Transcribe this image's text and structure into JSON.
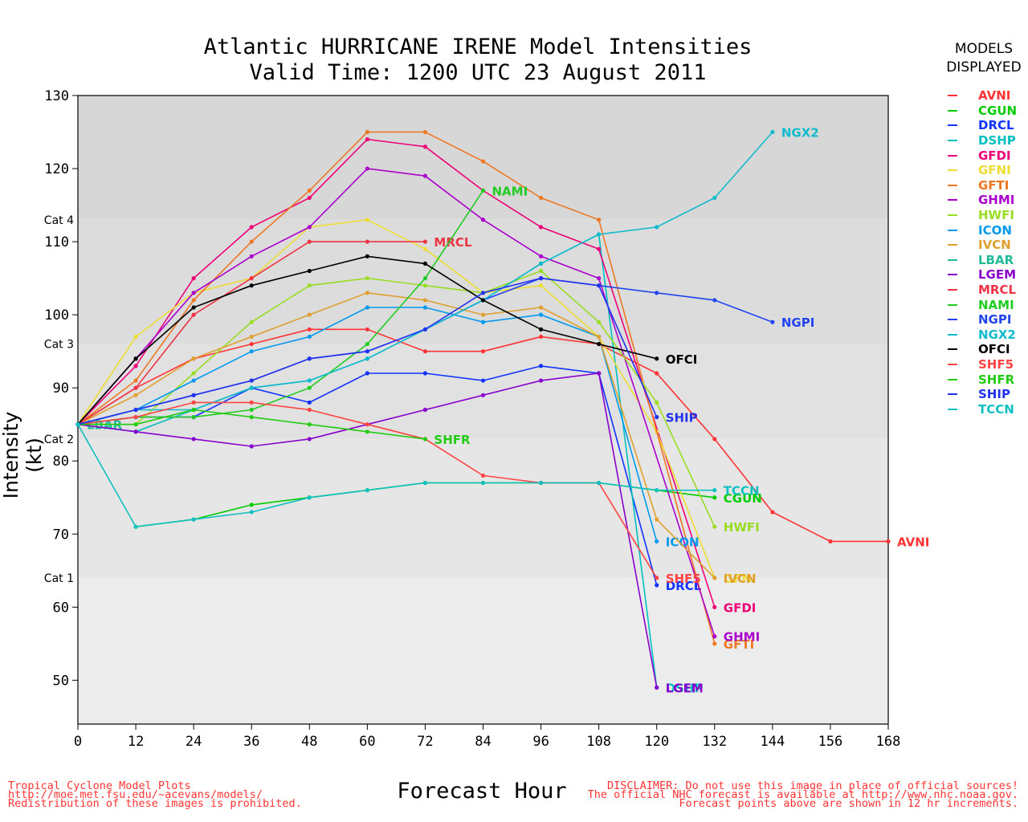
{
  "header": {
    "title_line1": "Atlantic HURRICANE IRENE Model Intensities",
    "title_line2": "Valid Time: 1200 UTC 23 August 2011"
  },
  "legend": {
    "head_line1": "MODELS",
    "head_line2": "DISPLAYED"
  },
  "footer": {
    "left": [
      "Tropical Cyclone Model Plots",
      "http://moe.met.fsu.edu/~acevans/models/",
      "Redistribution of these images is prohibited."
    ],
    "right": [
      "DISCLAIMER: Do not use this image in place of official sources!",
      "The official NHC forecast is available at http://www.nhc.noaa.gov.",
      "Forecast points above are shown in 12 hr increments."
    ]
  },
  "chart_data": {
    "type": "line",
    "xlabel": "Forecast Hour",
    "ylabel": "Intensity (kt)",
    "xlim": [
      0,
      168
    ],
    "ylim": [
      44,
      130
    ],
    "xticks": [
      0,
      12,
      24,
      36,
      48,
      60,
      72,
      84,
      96,
      108,
      120,
      132,
      144,
      156,
      168
    ],
    "yticks": [
      50,
      60,
      70,
      80,
      90,
      100,
      110,
      120,
      130
    ],
    "categories": [
      {
        "label": "Cat 1",
        "value": 64
      },
      {
        "label": "Cat 2",
        "value": 83
      },
      {
        "label": "Cat 3",
        "value": 96
      },
      {
        "label": "Cat 4",
        "value": 113
      }
    ],
    "bands": [
      {
        "from": 44,
        "to": 64,
        "color": "#ececec"
      },
      {
        "from": 64,
        "to": 83,
        "color": "#e6e6e6"
      },
      {
        "from": 83,
        "to": 96,
        "color": "#e1e1e1"
      },
      {
        "from": 96,
        "to": 113,
        "color": "#dcdcdc"
      },
      {
        "from": 113,
        "to": 130,
        "color": "#d7d7d7"
      }
    ],
    "legend_position": "right",
    "series": [
      {
        "name": "AVNI",
        "color": "#ff3333",
        "x": [
          0,
          12,
          24,
          36,
          48,
          60,
          72,
          84,
          96,
          108,
          120,
          132,
          144,
          156,
          168
        ],
        "y": [
          85,
          90,
          94,
          96,
          98,
          98,
          95,
          95,
          97,
          96,
          92,
          83,
          73,
          69,
          69
        ],
        "label_x": 168,
        "label_y": 69
      },
      {
        "name": "CGUN",
        "color": "#00cc00",
        "x": [
          12,
          24,
          36,
          48,
          60,
          72,
          84,
          96,
          108,
          120,
          132
        ],
        "y": [
          71,
          72,
          74,
          75,
          76,
          77,
          77,
          77,
          77,
          76,
          75
        ],
        "label_x": 132,
        "label_y": 75
      },
      {
        "name": "DRCL",
        "color": "#1133ff",
        "x": [
          0,
          12,
          24,
          36,
          48,
          60,
          72,
          84,
          96,
          108,
          120
        ],
        "y": [
          85,
          86,
          86,
          90,
          88,
          92,
          92,
          91,
          93,
          92,
          63
        ],
        "label_x": 120,
        "label_y": 63
      },
      {
        "name": "DSHP",
        "color": "#00c0c0",
        "x": [
          0,
          12,
          24,
          36,
          48,
          60,
          72,
          84,
          96,
          108,
          120
        ],
        "y": [
          85,
          84,
          87,
          90,
          91,
          94,
          98,
          102,
          107,
          111,
          49
        ],
        "label_x": 120,
        "label_y": 49
      },
      {
        "name": "GFDI",
        "color": "#ee0077",
        "x": [
          0,
          12,
          24,
          36,
          48,
          60,
          72,
          84,
          96,
          108,
          132
        ],
        "y": [
          85,
          93,
          105,
          112,
          116,
          124,
          123,
          117,
          112,
          109,
          60
        ],
        "label_x": 132,
        "label_y": 60
      },
      {
        "name": "GFNI",
        "color": "#eedd33",
        "x": [
          0,
          12,
          24,
          36,
          48,
          60,
          72,
          84,
          96,
          108,
          120,
          132
        ],
        "y": [
          85,
          97,
          103,
          105,
          112,
          113,
          109,
          103,
          104,
          97,
          84,
          64
        ],
        "label_x": 132,
        "label_y": 64
      },
      {
        "name": "GFTI",
        "color": "#ee7722",
        "x": [
          0,
          12,
          24,
          36,
          48,
          60,
          72,
          84,
          96,
          108,
          132
        ],
        "y": [
          85,
          91,
          102,
          110,
          117,
          125,
          125,
          121,
          116,
          113,
          55
        ],
        "label_x": 132,
        "label_y": 55
      },
      {
        "name": "GHMI",
        "color": "#aa00cc",
        "x": [
          0,
          12,
          24,
          36,
          48,
          60,
          72,
          84,
          96,
          108,
          132
        ],
        "y": [
          85,
          94,
          103,
          108,
          112,
          120,
          119,
          113,
          108,
          105,
          56
        ],
        "label_x": 132,
        "label_y": 56
      },
      {
        "name": "HWFI",
        "color": "#99dd22",
        "x": [
          0,
          12,
          24,
          36,
          48,
          60,
          72,
          84,
          96,
          108,
          120,
          132
        ],
        "y": [
          85,
          85,
          92,
          99,
          104,
          105,
          104,
          103,
          106,
          99,
          88,
          71
        ],
        "label_x": 132,
        "label_y": 71
      },
      {
        "name": "ICON",
        "color": "#0099ee",
        "x": [
          0,
          12,
          24,
          36,
          48,
          60,
          72,
          84,
          96,
          108,
          120
        ],
        "y": [
          85,
          87,
          91,
          95,
          97,
          101,
          101,
          99,
          100,
          97,
          69
        ],
        "label_x": 120,
        "label_y": 69
      },
      {
        "name": "IVCN",
        "color": "#e0a030",
        "x": [
          0,
          12,
          24,
          36,
          48,
          60,
          72,
          84,
          96,
          108,
          120,
          132
        ],
        "y": [
          85,
          89,
          94,
          97,
          100,
          103,
          102,
          100,
          101,
          97,
          72,
          64
        ],
        "label_x": 132,
        "label_y": 64
      },
      {
        "name": "LBAR",
        "color": "#22bb99",
        "x": [
          0
        ],
        "y": [
          85
        ],
        "label_x": 0,
        "label_y": 85
      },
      {
        "name": "LGEM",
        "color": "#8800cc",
        "x": [
          0,
          12,
          24,
          36,
          48,
          60,
          72,
          84,
          96,
          108,
          120
        ],
        "y": [
          85,
          84,
          83,
          82,
          83,
          85,
          87,
          89,
          91,
          92,
          49
        ],
        "label_x": 120,
        "label_y": 49
      },
      {
        "name": "MRCL",
        "color": "#ee3344",
        "x": [
          0,
          12,
          24,
          36,
          48,
          60,
          72
        ],
        "y": [
          85,
          90,
          100,
          105,
          110,
          110,
          110
        ],
        "label_x": 72,
        "label_y": 110
      },
      {
        "name": "NAMI",
        "color": "#22cc22",
        "x": [
          0,
          12,
          24,
          36,
          48,
          60,
          72,
          84
        ],
        "y": [
          85,
          86,
          86,
          87,
          90,
          96,
          105,
          117
        ],
        "label_x": 84,
        "label_y": 117
      },
      {
        "name": "NGPI",
        "color": "#2244ee",
        "x": [
          0,
          12,
          24,
          36,
          48,
          60,
          72,
          84,
          96,
          108,
          120,
          132,
          144
        ],
        "y": [
          85,
          87,
          89,
          91,
          94,
          95,
          98,
          102,
          105,
          104,
          103,
          102,
          99
        ],
        "label_x": 144,
        "label_y": 99
      },
      {
        "name": "NGX2",
        "color": "#11bbcc",
        "x": [
          0,
          12,
          24,
          36,
          48,
          60,
          72,
          84,
          96,
          108,
          120,
          132,
          144
        ],
        "y": [
          85,
          87,
          87,
          90,
          91,
          94,
          98,
          102,
          107,
          111,
          112,
          116,
          125
        ],
        "label_x": 144,
        "label_y": 125
      },
      {
        "name": "OFCI",
        "color": "#000000",
        "x": [
          0,
          12,
          24,
          36,
          48,
          60,
          72,
          84,
          96,
          108,
          120
        ],
        "y": [
          85,
          94,
          101,
          104,
          106,
          108,
          107,
          102,
          98,
          96,
          94
        ],
        "label_x": 120,
        "label_y": 94
      },
      {
        "name": "SHF5",
        "color": "#ff4444",
        "x": [
          0,
          12,
          24,
          36,
          48,
          60,
          72,
          84,
          96,
          108,
          120
        ],
        "y": [
          85,
          86,
          88,
          88,
          87,
          85,
          83,
          78,
          77,
          77,
          64
        ],
        "label_x": 120,
        "label_y": 64
      },
      {
        "name": "SHFR",
        "color": "#22cc11",
        "x": [
          0,
          12,
          24,
          36,
          48,
          60,
          72
        ],
        "y": [
          85,
          85,
          87,
          86,
          85,
          84,
          83
        ],
        "label_x": 72,
        "label_y": 83
      },
      {
        "name": "SHIP",
        "color": "#2233ee",
        "x": [
          0,
          12,
          24,
          36,
          48,
          60,
          72,
          84,
          96,
          108,
          120
        ],
        "y": [
          85,
          87,
          89,
          91,
          94,
          95,
          98,
          103,
          105,
          104,
          86
        ],
        "label_x": 120,
        "label_y": 86
      },
      {
        "name": "TCCN",
        "color": "#11c0c0",
        "x": [
          0,
          12,
          24,
          36,
          48,
          60,
          72,
          84,
          96,
          108,
          120,
          132
        ],
        "y": [
          85,
          71,
          72,
          73,
          75,
          76,
          77,
          77,
          77,
          77,
          76,
          76
        ],
        "label_x": 132,
        "label_y": 76
      }
    ]
  }
}
